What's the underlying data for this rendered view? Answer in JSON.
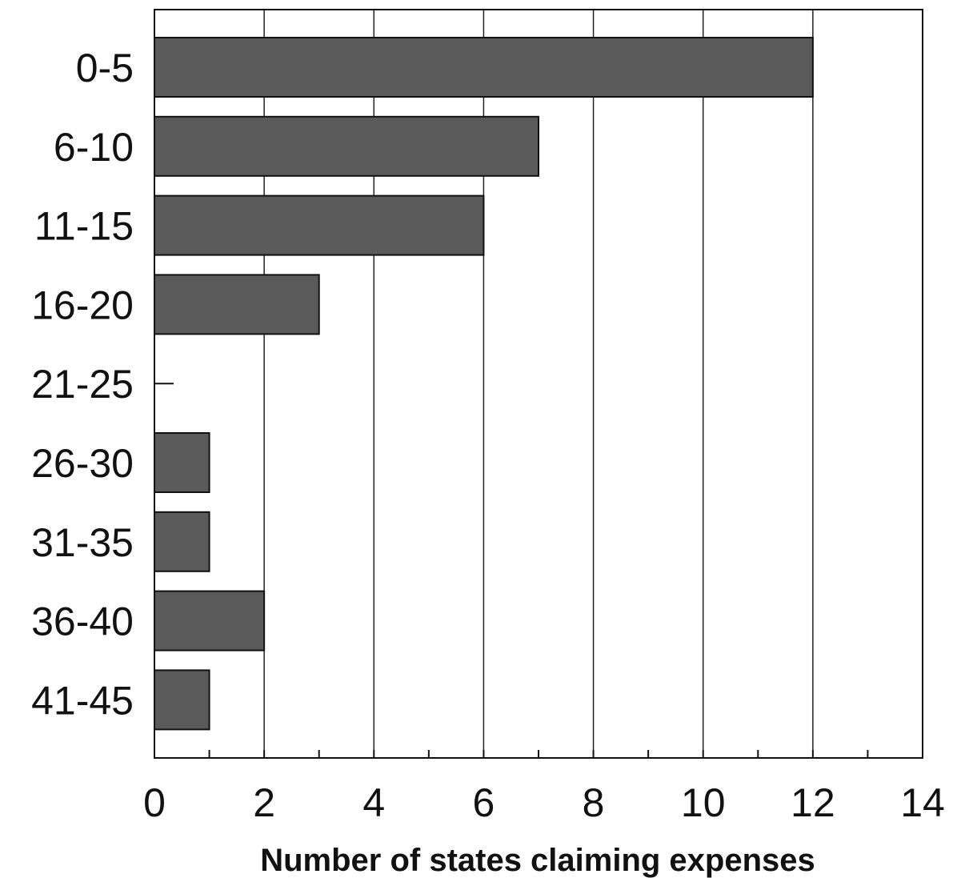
{
  "chart_data": {
    "type": "bar",
    "orientation": "horizontal",
    "categories": [
      "0-5",
      "6-10",
      "11-15",
      "16-20",
      "21-25",
      "26-30",
      "31-35",
      "36-40",
      "41-45"
    ],
    "values": [
      12,
      7,
      6,
      3,
      0,
      1,
      1,
      2,
      1
    ],
    "xlabel": "Number of states claiming expenses",
    "ylabel": "",
    "xlim": [
      0,
      14
    ],
    "xticks": [
      0,
      2,
      4,
      6,
      8,
      10,
      12,
      14
    ],
    "grid": "vertical",
    "bar_color": "#5a5a5a"
  }
}
